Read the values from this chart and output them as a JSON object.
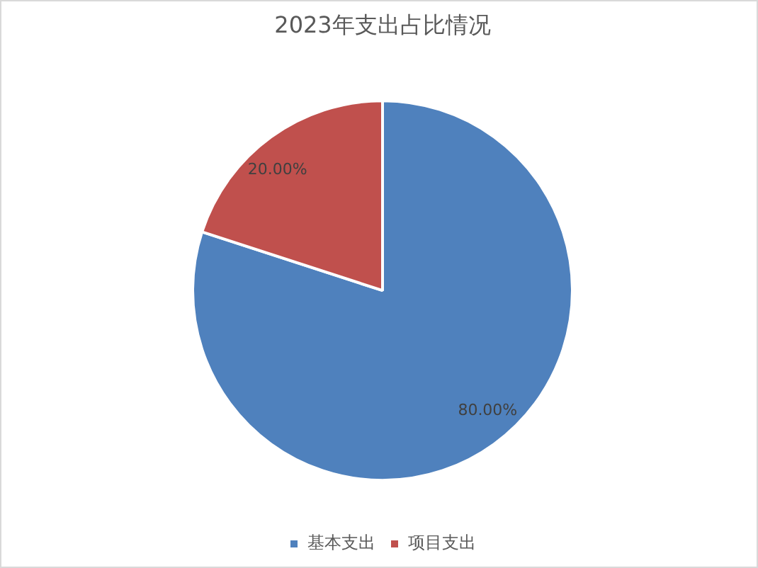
{
  "chart_data": {
    "type": "pie",
    "title": "2023年支出占比情况",
    "categories": [
      "基本支出",
      "项目支出"
    ],
    "values": [
      80,
      20
    ],
    "colors": [
      "#4f81bd",
      "#c0504d"
    ],
    "value_labels": [
      "80.00%",
      "20.00%"
    ],
    "legend": "bottom"
  }
}
